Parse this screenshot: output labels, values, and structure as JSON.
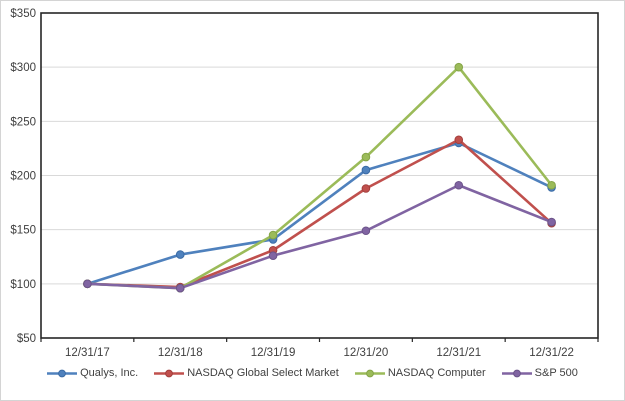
{
  "figure": {
    "background": "#ffffff",
    "border_color": "#d4d4d4",
    "plot_border_color": "#262626",
    "gridline_color": "#d9d9d9",
    "tick_text_color": "#404040"
  },
  "chart_data": {
    "type": "line",
    "title": "",
    "xlabel": "",
    "ylabel": "",
    "x_labels": [
      "12/31/17",
      "12/31/18",
      "12/31/19",
      "12/31/20",
      "12/31/21",
      "12/31/22"
    ],
    "y_ticks": [
      50,
      100,
      150,
      200,
      250,
      300,
      350
    ],
    "y_tick_prefix": "$",
    "ylim": [
      50,
      350
    ],
    "grid": "horizontal",
    "legend_position": "bottom",
    "series": [
      {
        "name": "Qualys, Inc.",
        "color": "#4F81BD",
        "marker_stroke": "#3A6BA5",
        "values": [
          100,
          127,
          141,
          205,
          230,
          189
        ]
      },
      {
        "name": "NASDAQ Global Select Market",
        "color": "#C0504D",
        "marker_stroke": "#A33E3C",
        "values": [
          100,
          97,
          131,
          188,
          233,
          156
        ]
      },
      {
        "name": "NASDAQ Computer",
        "color": "#9BBB59",
        "marker_stroke": "#84A447",
        "values": [
          100,
          96,
          145,
          217,
          300,
          191
        ]
      },
      {
        "name": "S&P 500",
        "color": "#8064A2",
        "marker_stroke": "#6B5389",
        "values": [
          100,
          96,
          126,
          149,
          191,
          157
        ]
      }
    ]
  }
}
